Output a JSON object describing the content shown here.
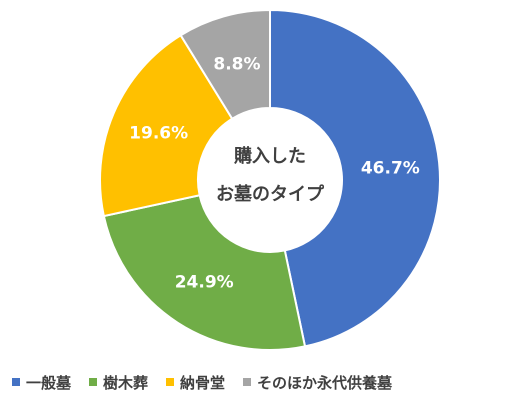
{
  "chart_data": {
    "type": "pie",
    "donut": true,
    "center_text": [
      "購入した",
      "お墓のタイプ"
    ],
    "slices": [
      {
        "name": "一般墓",
        "value": 46.7,
        "label": "46.7%",
        "color": "#4472C4"
      },
      {
        "name": "樹木葬",
        "value": 24.9,
        "label": "24.9%",
        "color": "#70AD47"
      },
      {
        "name": "納骨堂",
        "value": 19.6,
        "label": "19.6%",
        "color": "#FFC000"
      },
      {
        "name": "そのほか永代供養墓",
        "value": 8.8,
        "label": "8.8%",
        "color": "#A5A5A5"
      }
    ],
    "legend_position": "bottom"
  }
}
